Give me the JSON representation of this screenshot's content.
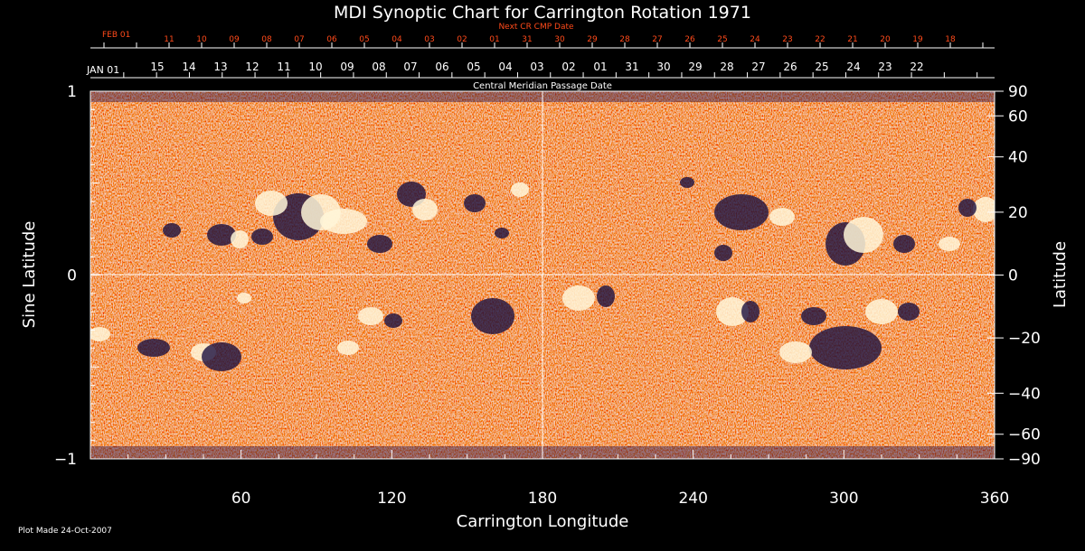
{
  "chart_data": {
    "type": "heatmap",
    "title": "MDI Synoptic Chart for Carrington Rotation 1971",
    "xlabel": "Carrington Longitude",
    "ylabel_left": "Sine Latitude",
    "ylabel_right": "Latitude",
    "xlim": [
      0,
      360
    ],
    "ylim": [
      -1,
      1
    ],
    "x_ticks": [
      60,
      120,
      180,
      240,
      300,
      360
    ],
    "y_ticks_left": [
      {
        "value": 1,
        "label": "1"
      },
      {
        "value": 0,
        "label": "0"
      },
      {
        "value": -1,
        "label": "−1"
      }
    ],
    "latitude_ticks": [
      90,
      60,
      40,
      20,
      0,
      -20,
      -40,
      -60,
      -90
    ],
    "latitude_labels": [
      "90",
      "60",
      "40",
      "20",
      "0",
      "−20",
      "−40",
      "−60",
      "−90"
    ],
    "top_axis_title": "Central Meridian Passage Date",
    "top_axis_start": "JAN 01",
    "top_axis_dates": [
      "15",
      "14",
      "13",
      "12",
      "11",
      "10",
      "09",
      "08",
      "07",
      "06",
      "05",
      "04",
      "03",
      "02",
      "01",
      "31",
      "30",
      "29",
      "28",
      "27",
      "26",
      "25",
      "24",
      "23",
      "22"
    ],
    "next_axis_title": "Next CR CMP Date",
    "next_axis_start": "FEB 01",
    "next_axis_dates": [
      "11",
      "10",
      "09",
      "08",
      "07",
      "06",
      "05",
      "04",
      "03",
      "02",
      "01",
      "31",
      "30",
      "29",
      "28",
      "27",
      "26",
      "25",
      "24",
      "23",
      "22",
      "21",
      "20",
      "19",
      "18"
    ],
    "gridlines": {
      "longitude": 180,
      "sine_latitude": 0
    },
    "footer": "Plot Made 24-Oct-2007",
    "colors": {
      "background": "#000000",
      "field_base": "#d6380c",
      "positive": "#ffffff",
      "negative": "#1a1040",
      "dates_accent": "#ff4a1a"
    }
  }
}
